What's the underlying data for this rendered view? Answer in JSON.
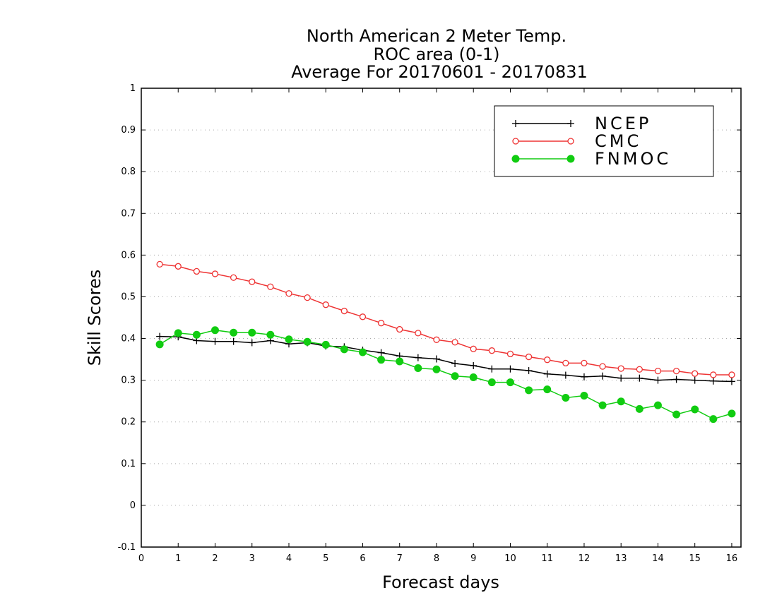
{
  "chart_data": {
    "type": "line",
    "title": [
      "North American 2 Meter Temp.",
      "ROC area (0-1)",
      "Average For 20170601 - 20170831"
    ],
    "xlabel": "Forecast days",
    "ylabel": "Skill Scores",
    "xlim": [
      0,
      16.25
    ],
    "ylim": [
      -0.1,
      1
    ],
    "xticks": [
      0,
      1,
      2,
      3,
      4,
      5,
      6,
      7,
      8,
      9,
      10,
      11,
      12,
      13,
      14,
      15,
      16
    ],
    "xtick_labels": [
      "0",
      "1",
      "2",
      "3",
      "4",
      "5",
      "6",
      "7",
      "8",
      "9",
      "10",
      "11",
      "12",
      "13",
      "14",
      "15",
      "16"
    ],
    "yticks": [
      -0.1,
      0,
      0.1,
      0.2,
      0.3,
      0.4,
      0.5,
      0.6,
      0.7,
      0.8,
      0.9,
      1
    ],
    "ytick_labels": [
      "-0.1",
      "0",
      "0.1",
      "0.2",
      "0.3",
      "0.4",
      "0.5",
      "0.6",
      "0.7",
      "0.8",
      "0.9",
      "1"
    ],
    "grid": "horizontal dotted",
    "legend_position": "top-right",
    "x": [
      0.5,
      1,
      1.5,
      2,
      2.5,
      3,
      3.5,
      4,
      4.5,
      5,
      5.5,
      6,
      6.5,
      7,
      7.5,
      8,
      8.5,
      9,
      9.5,
      10,
      10.5,
      11,
      11.5,
      12,
      12.5,
      13,
      13.5,
      14,
      14.5,
      15,
      15.5,
      16
    ],
    "series": [
      {
        "name": "NCEP",
        "color": "#000000",
        "marker": "plus",
        "values": [
          0.405,
          0.404,
          0.395,
          0.393,
          0.393,
          0.39,
          0.395,
          0.387,
          0.39,
          0.382,
          0.38,
          0.372,
          0.366,
          0.358,
          0.354,
          0.351,
          0.34,
          0.335,
          0.327,
          0.327,
          0.323,
          0.315,
          0.312,
          0.308,
          0.31,
          0.305,
          0.305,
          0.3,
          0.302,
          0.3,
          0.298,
          0.297
        ]
      },
      {
        "name": "CMC",
        "color": "#ee3333",
        "marker": "open-circle",
        "values": [
          0.578,
          0.573,
          0.561,
          0.555,
          0.546,
          0.536,
          0.524,
          0.508,
          0.498,
          0.481,
          0.466,
          0.452,
          0.437,
          0.422,
          0.413,
          0.397,
          0.391,
          0.375,
          0.371,
          0.363,
          0.356,
          0.349,
          0.341,
          0.341,
          0.333,
          0.328,
          0.326,
          0.322,
          0.322,
          0.316,
          0.313,
          0.313
        ]
      },
      {
        "name": "FNMOC",
        "color": "#11cc11",
        "marker": "filled-circle",
        "values": [
          0.386,
          0.413,
          0.409,
          0.42,
          0.414,
          0.414,
          0.409,
          0.398,
          0.392,
          0.385,
          0.374,
          0.367,
          0.349,
          0.345,
          0.329,
          0.326,
          0.31,
          0.307,
          0.295,
          0.295,
          0.276,
          0.278,
          0.258,
          0.263,
          0.24,
          0.249,
          0.231,
          0.24,
          0.218,
          0.23,
          0.207,
          0.22
        ]
      }
    ]
  }
}
